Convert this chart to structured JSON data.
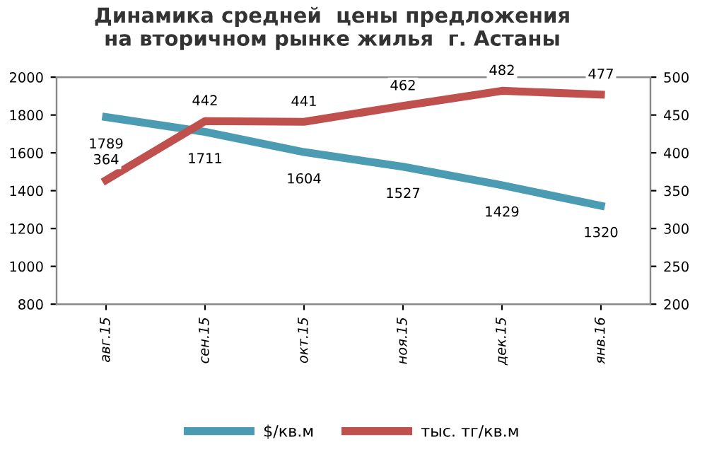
{
  "chart_data": {
    "type": "line",
    "title": "Динамика средней  цены предложения\nна вторичном рынке жилья  г. Астаны",
    "categories": [
      "авг.15",
      "сен.15",
      "окт.15",
      "ноя.15",
      "дек.15",
      "янв.16"
    ],
    "series": [
      {
        "name": "$/кв.м",
        "color": "#4b9cb3",
        "values": [
          1789,
          1711,
          1604,
          1527,
          1429,
          1320
        ]
      },
      {
        "name": "тыс. тг/кв.м",
        "color": "#c0504d",
        "values": [
          364,
          442,
          441,
          462,
          482,
          477
        ],
        "axis": "y2"
      }
    ],
    "ylim": [
      800,
      2000
    ],
    "yticks": [
      800,
      1000,
      1200,
      1400,
      1600,
      1800,
      2000
    ],
    "y2lim": [
      200,
      500
    ],
    "y2ticks": [
      200,
      250,
      300,
      350,
      400,
      450,
      500
    ],
    "data_labels": true,
    "legend": "bottom",
    "grid": false,
    "marker": "none",
    "line_style": "solid"
  }
}
